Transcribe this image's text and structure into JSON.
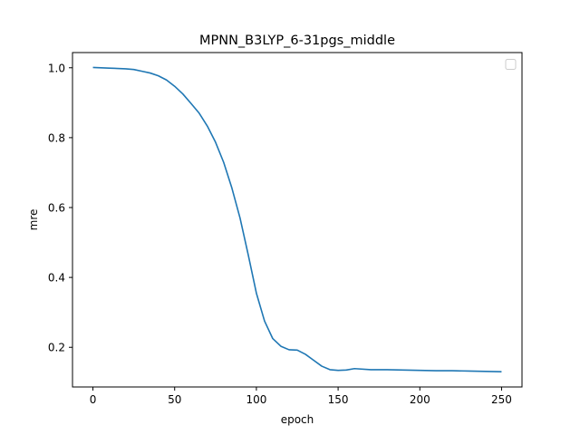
{
  "chart_data": {
    "type": "line",
    "title": "MPNN_B3LYP_6-31pgs_middle",
    "xlabel": "epoch",
    "ylabel": "mre",
    "xlim": [
      -12.5,
      262.5
    ],
    "ylim": [
      0.0865,
      1.0435
    ],
    "x_ticks": [
      0,
      50,
      100,
      150,
      200,
      250
    ],
    "y_ticks": [
      0.2,
      0.4,
      0.6,
      0.8,
      1.0
    ],
    "x_tick_labels": [
      "0",
      "50",
      "100",
      "150",
      "200",
      "250"
    ],
    "y_tick_labels": [
      "0.2",
      "0.4",
      "0.6",
      "0.8",
      "1.0"
    ],
    "grid": false,
    "legend": {
      "placement": "top-right",
      "entries": []
    },
    "series": [
      {
        "color": "#1f77b4",
        "points": [
          [
            0,
            1.001
          ],
          [
            10,
            0.999
          ],
          [
            20,
            0.997
          ],
          [
            25,
            0.995
          ],
          [
            30,
            0.99
          ],
          [
            35,
            0.985
          ],
          [
            40,
            0.977
          ],
          [
            45,
            0.965
          ],
          [
            50,
            0.947
          ],
          [
            55,
            0.925
          ],
          [
            60,
            0.898
          ],
          [
            65,
            0.87
          ],
          [
            70,
            0.833
          ],
          [
            75,
            0.787
          ],
          [
            80,
            0.729
          ],
          [
            85,
            0.656
          ],
          [
            90,
            0.57
          ],
          [
            95,
            0.465
          ],
          [
            100,
            0.355
          ],
          [
            105,
            0.275
          ],
          [
            110,
            0.225
          ],
          [
            115,
            0.203
          ],
          [
            120,
            0.193
          ],
          [
            125,
            0.192
          ],
          [
            130,
            0.18
          ],
          [
            135,
            0.163
          ],
          [
            140,
            0.146
          ],
          [
            145,
            0.136
          ],
          [
            150,
            0.134
          ],
          [
            155,
            0.135
          ],
          [
            160,
            0.139
          ],
          [
            170,
            0.136
          ],
          [
            180,
            0.136
          ],
          [
            190,
            0.135
          ],
          [
            200,
            0.134
          ],
          [
            210,
            0.133
          ],
          [
            220,
            0.133
          ],
          [
            230,
            0.132
          ],
          [
            240,
            0.131
          ],
          [
            250,
            0.13
          ]
        ]
      }
    ]
  }
}
